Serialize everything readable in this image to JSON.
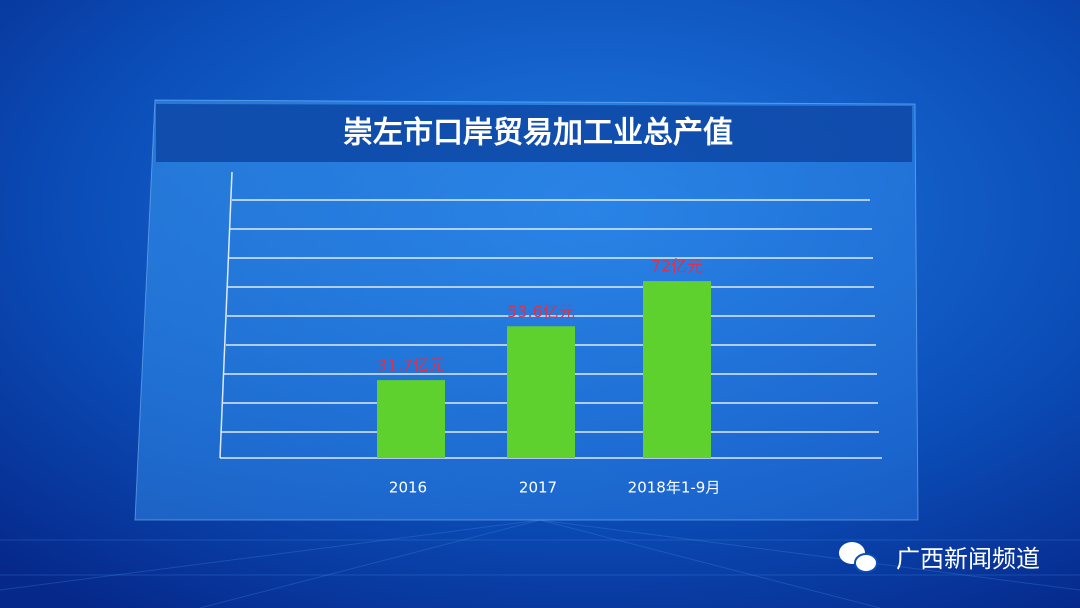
{
  "chart_data": {
    "type": "bar",
    "title": "崇左市口岸贸易加工业总产值",
    "categories": [
      "2016",
      "2017",
      "2018年1-9月"
    ],
    "values": [
      31.7,
      53.6,
      72
    ],
    "value_labels": [
      "31.7亿元",
      "53.6亿元",
      "72亿元"
    ],
    "color": "#5fd12f",
    "label_color": "#e0304a",
    "ylim": [
      0,
      105
    ]
  },
  "watermark": "广西新闻频道"
}
